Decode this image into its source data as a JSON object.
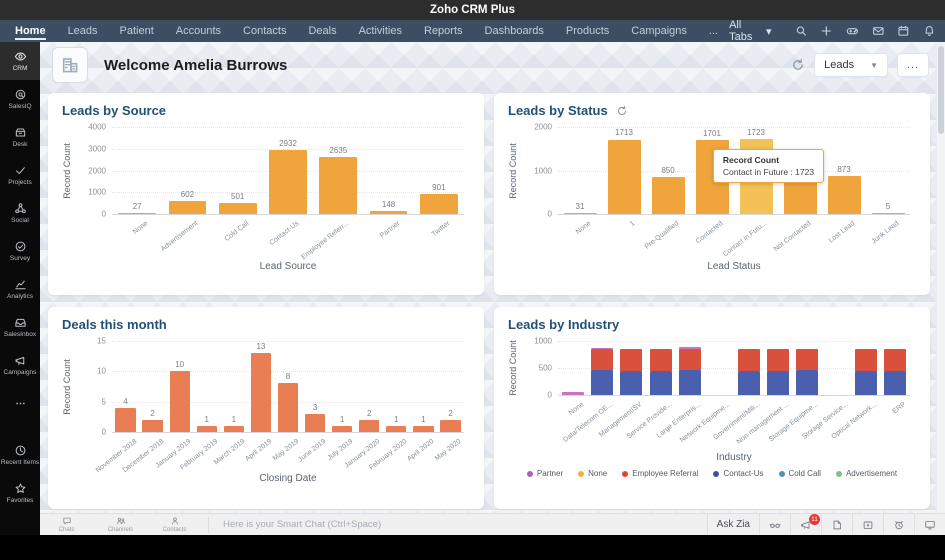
{
  "app": {
    "title": "Zoho CRM Plus"
  },
  "navbar": {
    "tabs": [
      {
        "label": "Home",
        "active": true
      },
      {
        "label": "Leads",
        "active": false
      },
      {
        "label": "Patient",
        "active": false
      },
      {
        "label": "Accounts",
        "active": false
      },
      {
        "label": "Contacts",
        "active": false
      },
      {
        "label": "Deals",
        "active": false
      },
      {
        "label": "Activities",
        "active": false
      },
      {
        "label": "Reports",
        "active": false
      },
      {
        "label": "Dashboards",
        "active": false
      },
      {
        "label": "Products",
        "active": false
      },
      {
        "label": "Campaigns",
        "active": false
      },
      {
        "label": "...",
        "active": false
      }
    ],
    "all_tabs_label": "All Tabs",
    "icons": [
      "search-icon",
      "add-icon",
      "games-icon",
      "mail-icon",
      "calendar-icon",
      "notifications-icon",
      "settings-icon",
      "user-avatar"
    ]
  },
  "sidebar": {
    "items": [
      {
        "label": "CRM",
        "icon": "crm-icon",
        "active": true
      },
      {
        "label": "SalesIQ",
        "icon": "salesiq-icon",
        "active": false
      },
      {
        "label": "Desk",
        "icon": "desk-icon",
        "active": false
      },
      {
        "label": "Projects",
        "icon": "projects-icon",
        "active": false
      },
      {
        "label": "Social",
        "icon": "social-icon",
        "active": false
      },
      {
        "label": "Survey",
        "icon": "survey-icon",
        "active": false
      },
      {
        "label": "Analytics",
        "icon": "analytics-icon",
        "active": false
      },
      {
        "label": "SalesInbox",
        "icon": "salesinbox-icon",
        "active": false
      },
      {
        "label": "Campaigns",
        "icon": "campaigns-icon",
        "active": false
      },
      {
        "label": "",
        "icon": "more-icon",
        "active": false
      }
    ],
    "bottom_items": [
      {
        "label": "Recent Items",
        "icon": "recent-icon"
      },
      {
        "label": "Favorites",
        "icon": "favorites-icon"
      }
    ]
  },
  "header": {
    "title": "Welcome Amelia Burrows",
    "module_select": "Leads",
    "more_label": "..."
  },
  "chart_data": [
    {
      "type": "bar",
      "title": "Leads by Source",
      "categories": [
        "None",
        "Advertisement",
        "Cold Call",
        "Contact-Us",
        "Employee Referr...",
        "Partner",
        "Twitter"
      ],
      "values": [
        27,
        602,
        501,
        2932,
        2635,
        148,
        901
      ],
      "ylabel": "Record Count",
      "xlabel": "Lead Source",
      "yticks": [
        0,
        1000,
        2000,
        3000,
        4000
      ],
      "ymax": 4000,
      "bar_color": "#efa53c",
      "show_values": true
    },
    {
      "type": "bar",
      "title": "Leads by Status",
      "categories": [
        "None",
        "1",
        "Pre-Qualified",
        "Contacted",
        "Contact in Futu...",
        "Not Contacted",
        "Lost Lead",
        "Junk Lead"
      ],
      "values": [
        31,
        1713,
        850,
        1701,
        1723,
        870,
        873,
        5
      ],
      "hidden_value_labels": [
        5
      ],
      "highlight_index": 4,
      "highlight_color": "#f3c155",
      "tooltip": {
        "title": "Record Count",
        "text": "Contact in Future : 1723"
      },
      "ylabel": "Record Count",
      "xlabel": "Lead Status",
      "yticks": [
        0,
        1000,
        2000
      ],
      "ymax": 2000,
      "bar_color": "#efa53c",
      "show_values": true
    },
    {
      "type": "bar",
      "title": "Deals this month",
      "categories": [
        "November 2018",
        "December 2018",
        "January 2019",
        "February 2019",
        "March 2019",
        "April 2019",
        "May 2019",
        "June 2019",
        "July 2019",
        "January 2020",
        "February 2020",
        "April 2020",
        "May 2020"
      ],
      "values": [
        4,
        2,
        10,
        1,
        1,
        13,
        8,
        3,
        1,
        2,
        1,
        1,
        2
      ],
      "ylabel": "Record Count",
      "xlabel": "Closing Date",
      "yticks": [
        0,
        5,
        10,
        15
      ],
      "ymax": 15,
      "bar_color": "#e97e55",
      "show_values": true
    },
    {
      "type": "stacked-bar",
      "title": "Leads by Industry",
      "categories": [
        "None",
        "Data/Telecom OE...",
        "ManagementISV",
        "Service Provide...",
        "Large Enterpris...",
        "Network Equipme...",
        "Government/Mili...",
        "Non-management ...",
        "Storage Equipme...",
        "Storage Service...",
        "Optical Network...",
        "ERP"
      ],
      "series": [
        {
          "name": "Contact-Us",
          "color": "#4a5fae",
          "values": [
            0,
            455,
            450,
            450,
            455,
            0,
            450,
            450,
            455,
            0,
            450,
            450
          ]
        },
        {
          "name": "Employee Referral",
          "color": "#d9503c",
          "values": [
            0,
            400,
            400,
            400,
            405,
            0,
            400,
            400,
            400,
            0,
            400,
            400
          ]
        },
        {
          "name": "Partner",
          "color": "#c873bd",
          "values": [
            55,
            20,
            0,
            0,
            25,
            0,
            0,
            0,
            0,
            0,
            0,
            0
          ]
        }
      ],
      "legend": [
        {
          "name": "Partner",
          "color": "#b05fb2"
        },
        {
          "name": "None",
          "color": "#f2b23e"
        },
        {
          "name": "Employee Referral",
          "color": "#e2442e"
        },
        {
          "name": "Contact-Us",
          "color": "#3c50a5"
        },
        {
          "name": "Cold Call",
          "color": "#5a8fc0"
        },
        {
          "name": "Advertisement",
          "color": "#77c586"
        }
      ],
      "ylabel": "Record Count",
      "xlabel": "Industry",
      "yticks": [
        0,
        500,
        1000
      ],
      "ymax": 1000,
      "show_values": false
    }
  ],
  "chatbar": {
    "tabs": [
      {
        "label": "Chats",
        "icon": "chat-bubble-icon"
      },
      {
        "label": "Channels",
        "icon": "channels-icon"
      },
      {
        "label": "Contacts",
        "icon": "contact-person-icon"
      }
    ],
    "placeholder": "Here is your Smart Chat (Ctrl+Space)",
    "ask_zia": "Ask Zia",
    "badge": "11"
  }
}
